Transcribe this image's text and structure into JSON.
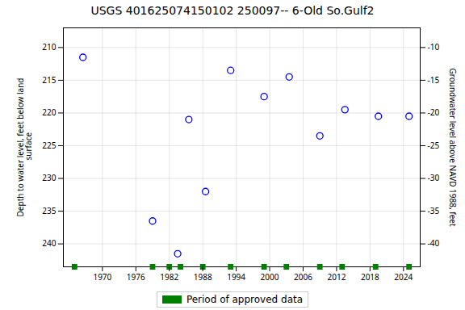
{
  "chart_data": {
    "type": "scatter",
    "title": "USGS 401625074150102 250097-- 6-Old So.Gulf2",
    "ylabel": "Depth to water level, feet below land\n surface",
    "y2label": "Groundwater level above NAVD 1988, feet",
    "xlim": [
      1963,
      2027
    ],
    "xticks": [
      1970,
      1976,
      1982,
      1988,
      1994,
      2000,
      2006,
      2012,
      2018,
      2024
    ],
    "ylim": [
      243.5,
      207.0
    ],
    "yticks": [
      210,
      215,
      220,
      225,
      230,
      235,
      240
    ],
    "y2lim": [
      -43.5,
      -7.0
    ],
    "y2ticks": [
      -10,
      -15,
      -20,
      -25,
      -30,
      -35,
      -40
    ],
    "grid": true,
    "legend": "bottom",
    "series": [
      {
        "x": [
          1966.5,
          1979,
          1983.5,
          1985.5,
          1988.5,
          1993,
          1999,
          2003.5,
          2009,
          2013.5,
          2019.5,
          2025
        ],
        "values": [
          211.5,
          236.5,
          241.5,
          221.0,
          232.0,
          213.5,
          217.5,
          214.5,
          223.5,
          219.5,
          220.5,
          220.5
        ],
        "color": "blue",
        "marker": "circle"
      },
      {
        "name": "Period of approved data",
        "x": [
          1965,
          1979,
          1982,
          1984,
          1988,
          1993,
          1999,
          2003,
          2009,
          2013,
          2019,
          2025
        ],
        "values": [
          243.5,
          243.5,
          243.5,
          243.5,
          243.5,
          243.5,
          243.5,
          243.5,
          243.5,
          243.5,
          243.5,
          243.5
        ],
        "color": "green",
        "marker": "square"
      }
    ]
  }
}
